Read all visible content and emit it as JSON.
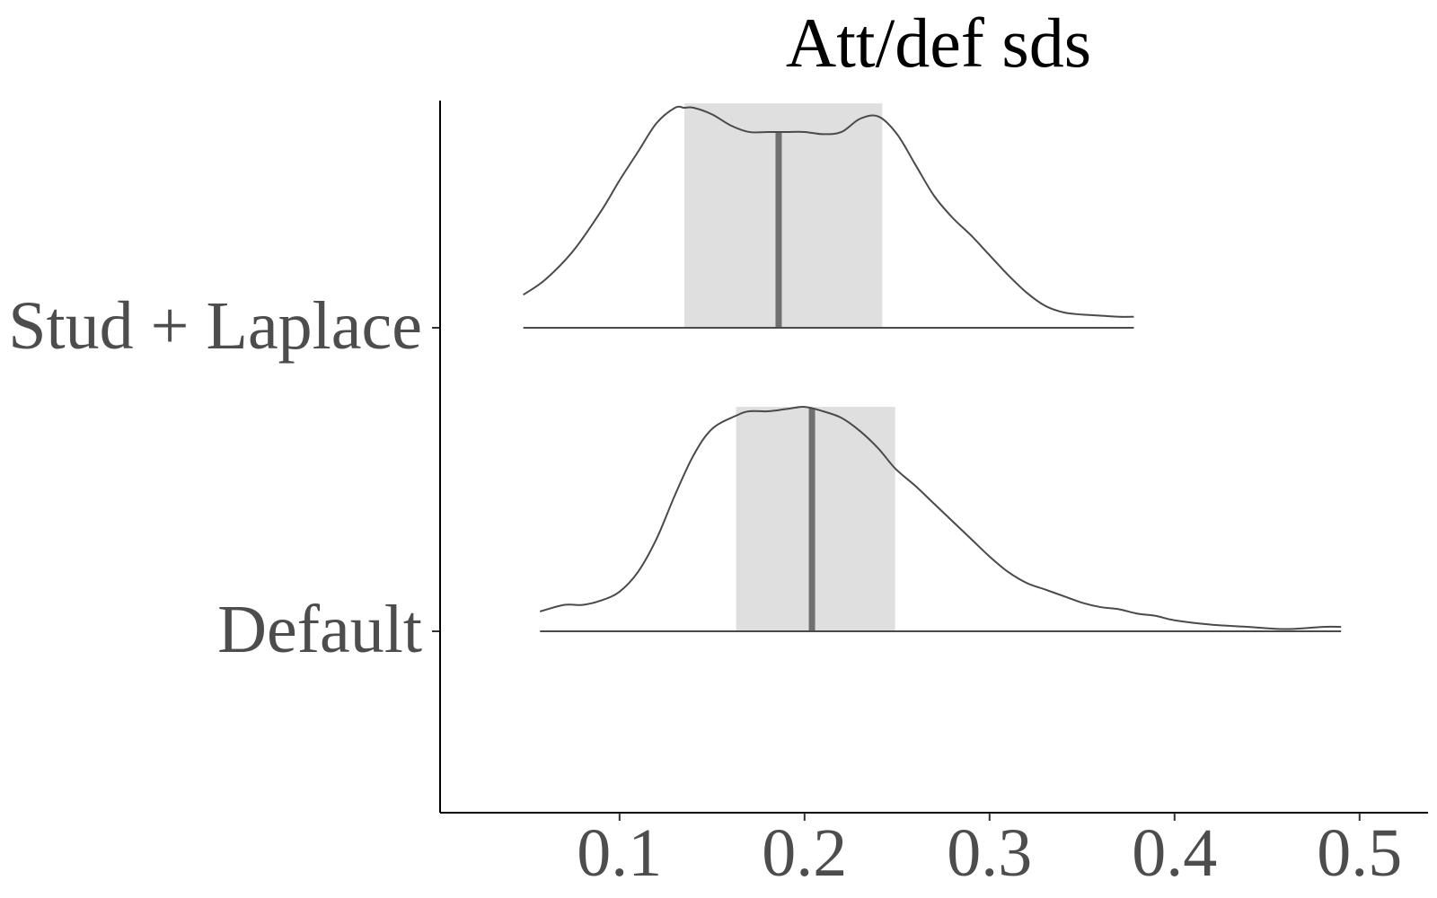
{
  "chart_data": {
    "type": "ridgeline-density",
    "title": "Att/def sds",
    "xlabel": "",
    "ylabel": "",
    "xlim": [
      0.003,
      0.537
    ],
    "x_ticks": [
      0.1,
      0.2,
      0.3,
      0.4,
      0.5
    ],
    "x_tick_labels": [
      "0.1",
      "0.2",
      "0.3",
      "0.4",
      "0.5"
    ],
    "grid": false,
    "legend": "none",
    "colors": {
      "band": "#dfdfdf",
      "median": "#707070",
      "curve": "#4a4a4a",
      "text": "#4d4d4d",
      "title": "#000000"
    },
    "series": [
      {
        "name": "Stud + Laplace",
        "range": [
          0.048,
          0.378
        ],
        "interval": [
          0.135,
          0.242
        ],
        "median": 0.186,
        "density": {
          "x": [
            0.048,
            0.06,
            0.075,
            0.09,
            0.1,
            0.11,
            0.12,
            0.13,
            0.135,
            0.14,
            0.15,
            0.16,
            0.17,
            0.18,
            0.19,
            0.2,
            0.21,
            0.22,
            0.23,
            0.24,
            0.25,
            0.26,
            0.27,
            0.28,
            0.29,
            0.3,
            0.31,
            0.32,
            0.33,
            0.34,
            0.35,
            0.36,
            0.37,
            0.378
          ],
          "y": [
            0.15,
            0.22,
            0.35,
            0.53,
            0.67,
            0.8,
            0.93,
            1.0,
            1.0,
            1.0,
            0.97,
            0.92,
            0.89,
            0.89,
            0.89,
            0.89,
            0.88,
            0.89,
            0.95,
            0.96,
            0.88,
            0.74,
            0.6,
            0.5,
            0.42,
            0.33,
            0.24,
            0.16,
            0.1,
            0.07,
            0.06,
            0.055,
            0.05,
            0.05
          ]
        }
      },
      {
        "name": "Default",
        "range": [
          0.057,
          0.49
        ],
        "interval": [
          0.163,
          0.249
        ],
        "median": 0.204,
        "density": {
          "x": [
            0.057,
            0.07,
            0.08,
            0.09,
            0.1,
            0.11,
            0.12,
            0.13,
            0.14,
            0.15,
            0.163,
            0.17,
            0.18,
            0.19,
            0.2,
            0.21,
            0.22,
            0.23,
            0.24,
            0.249,
            0.26,
            0.27,
            0.28,
            0.29,
            0.3,
            0.31,
            0.32,
            0.33,
            0.34,
            0.35,
            0.36,
            0.37,
            0.38,
            0.39,
            0.4,
            0.42,
            0.44,
            0.46,
            0.48,
            0.49
          ],
          "y": [
            0.09,
            0.12,
            0.12,
            0.14,
            0.18,
            0.27,
            0.42,
            0.62,
            0.8,
            0.92,
            0.98,
            1.0,
            1.0,
            1.01,
            1.02,
            1.0,
            0.97,
            0.91,
            0.83,
            0.74,
            0.66,
            0.58,
            0.5,
            0.42,
            0.34,
            0.27,
            0.22,
            0.19,
            0.16,
            0.13,
            0.11,
            0.1,
            0.08,
            0.07,
            0.05,
            0.03,
            0.02,
            0.01,
            0.02,
            0.02
          ]
        }
      }
    ]
  }
}
